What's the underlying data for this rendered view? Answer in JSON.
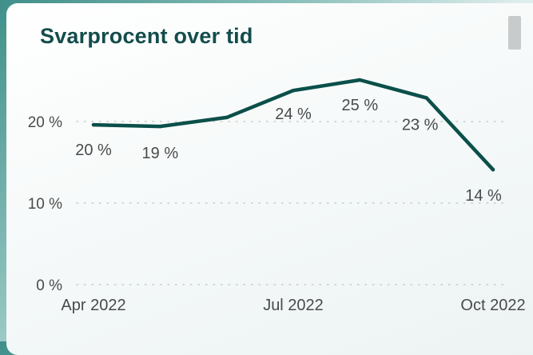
{
  "card": {
    "title": "Svarprocent over tid"
  },
  "colors": {
    "line": "#0b4f4a",
    "text": "#4a4a4a",
    "grid": "#c9cccd"
  },
  "chart_data": {
    "type": "line",
    "title": "Svarprocent over tid",
    "xlabel": "",
    "ylabel": "",
    "x": [
      "2022-04",
      "2022-05",
      "2022-06",
      "2022-07",
      "2022-08",
      "2022-09",
      "2022-10"
    ],
    "x_tick_labels": [
      {
        "x": "2022-04",
        "label": "Apr 2022"
      },
      {
        "x": "2022-07",
        "label": "Jul 2022"
      },
      {
        "x": "2022-10",
        "label": "Oct 2022"
      }
    ],
    "values": [
      19.6,
      19.4,
      20.5,
      23.8,
      25.1,
      22.9,
      14.1
    ],
    "data_labels": [
      "20 %",
      "19 %",
      "",
      "24 %",
      "25 %",
      "23 %",
      "14 %"
    ],
    "y_ticks": [
      0,
      10,
      20
    ],
    "y_tick_labels": [
      "0 %",
      "10 %",
      "20 %"
    ],
    "ylim": [
      0,
      25
    ],
    "grid": true
  }
}
